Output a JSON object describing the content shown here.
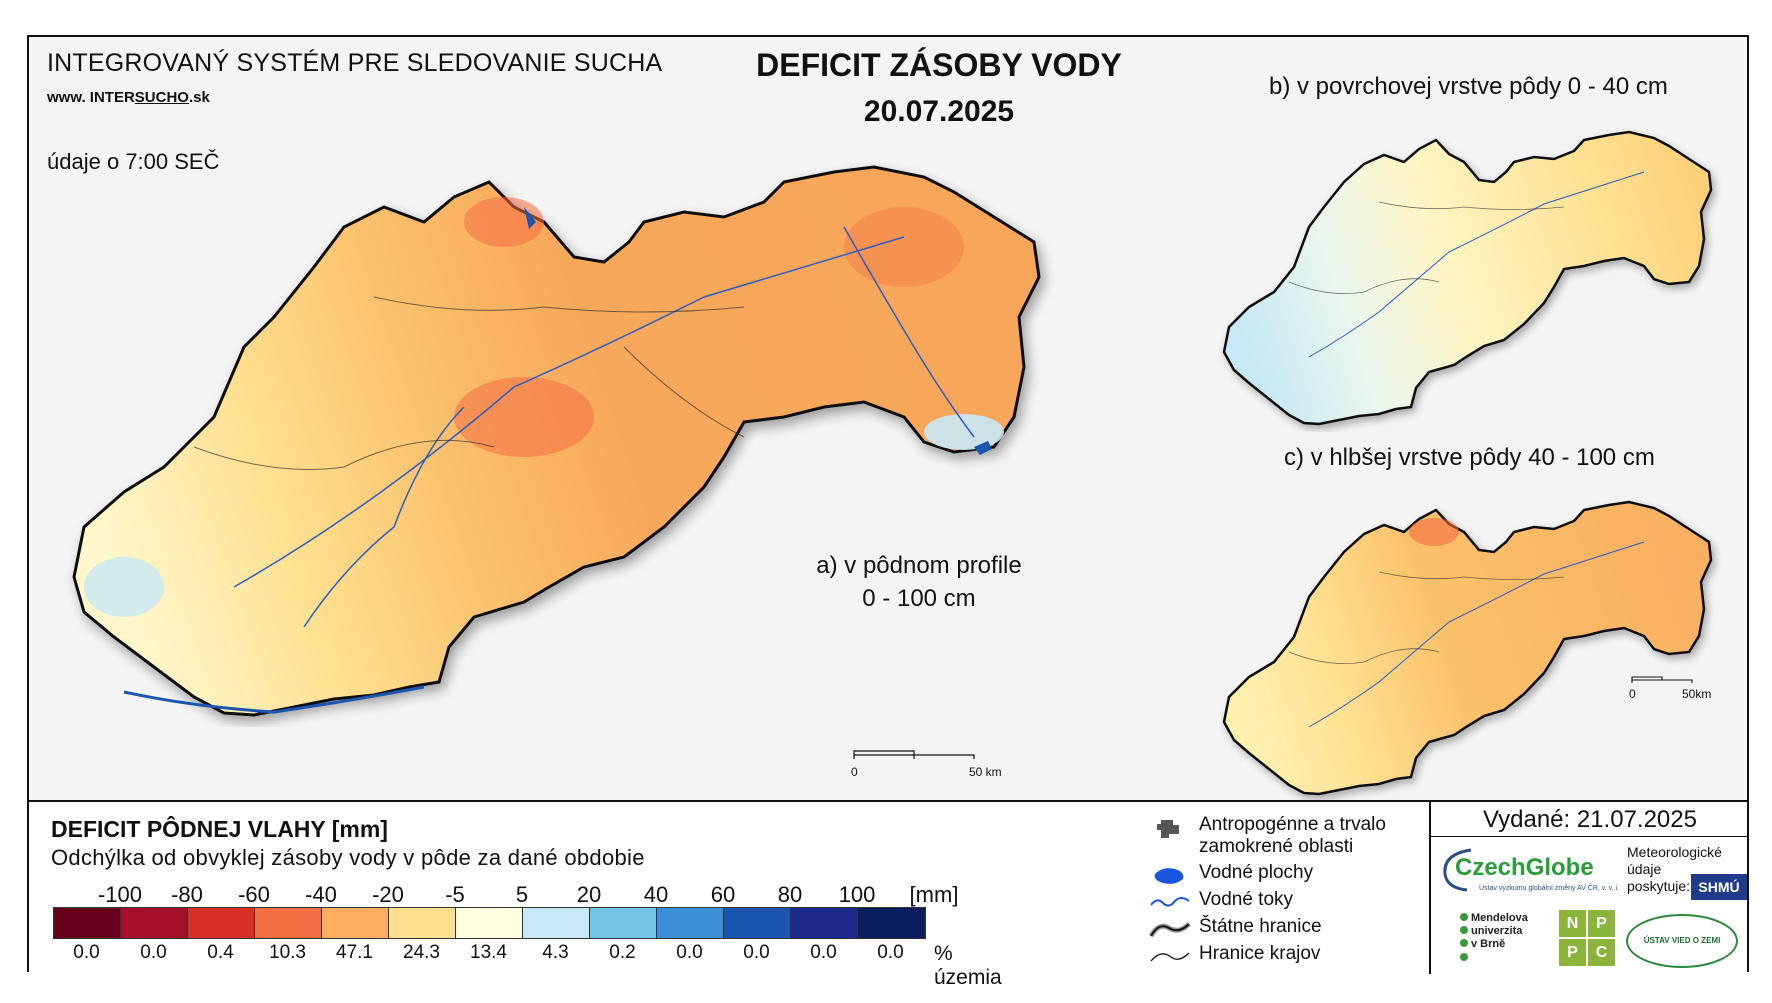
{
  "header": {
    "system_name": "INTEGROVANÝ SYSTÉM PRE SLEDOVANIE SUCHA",
    "website_prefix": "www. ",
    "website_mid": "INTER",
    "website_underlined": "SUCHO",
    "website_suffix": ".sk",
    "data_time": "údaje o 7:00 SEČ",
    "title": "DEFICIT ZÁSOBY VODY",
    "date": "20.07.2025"
  },
  "panels": {
    "a_line1": "a) v pôdnom profile",
    "a_line2": "0 - 100 cm",
    "b": "b) v povrchovej vrstve pôdy 0 - 40 cm",
    "c": "c) v hlbšej vrstve pôdy 40 - 100 cm"
  },
  "scalebars": {
    "main_zero": "0",
    "main_end": "50 km",
    "small_zero": "0",
    "small_end": "50km"
  },
  "legend": {
    "title": "DEFICIT PÔDNEJ VLAHY [mm]",
    "subtitle": "Odchýlka od obvyklej zásoby vody v pôde za dané obdobie",
    "tick_labels": [
      "-100",
      "-80",
      "-60",
      "-40",
      "-20",
      "-5",
      "5",
      "20",
      "40",
      "60",
      "80",
      "100"
    ],
    "unit": "[mm]",
    "colors": [
      "#67001f",
      "#a50f2a",
      "#d73027",
      "#f46d43",
      "#fdae61",
      "#fee090",
      "#ffffe0",
      "#c7e9f5",
      "#74c4e6",
      "#3a8fd6",
      "#1a55b0",
      "#1d2a8c",
      "#0a1f5c"
    ],
    "percentages": [
      "0.0",
      "0.0",
      "0.4",
      "10.3",
      "47.1",
      "24.3",
      "13.4",
      "4.3",
      "0.2",
      "0.0",
      "0.0",
      "0.0",
      "0.0"
    ],
    "percent_unit": "% územia"
  },
  "symbols": {
    "anthro_line1": "Antropogénne a trvalo",
    "anthro_line2": "zamokrené oblasti",
    "water_bodies": "Vodné plochy",
    "water_streams": "Vodné toky",
    "state_borders": "Štátne hranice",
    "region_borders": "Hranice krajov"
  },
  "footer": {
    "issued": "Vydané: 21.07.2025",
    "czechglobe": "CzechGlobe",
    "czechglobe_sub": "Ústav výzkumu globální změny AV ČR, v. v. i.",
    "meteo_line1": "Meteorologické",
    "meteo_line2": "údaje",
    "meteo_line3": "poskytuje:",
    "shmu": "SHMÚ",
    "mendel_line1": "Mendelova",
    "mendel_line2": "univerzita",
    "mendel_line3": "v Brně",
    "npc": [
      "N",
      "P",
      "P",
      "C"
    ],
    "uvz": "ÚSTAV VIED O ZEMI"
  }
}
